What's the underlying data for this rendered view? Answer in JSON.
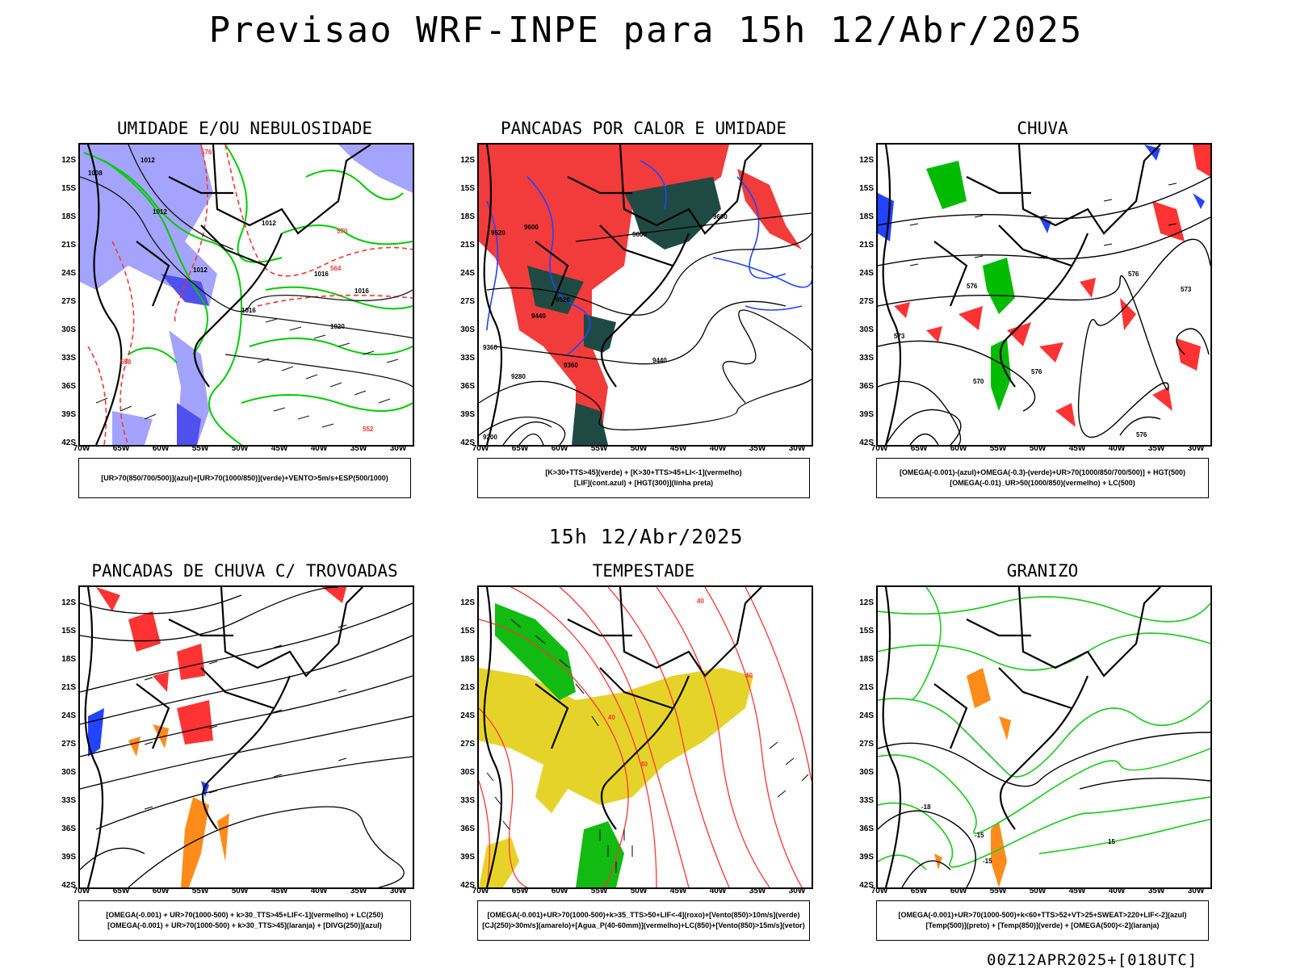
{
  "header": {
    "title": "Previsao WRF-INPE  para 15h 12/Abr/2025"
  },
  "middle_title": "15h 12/Abr/2025",
  "footer_stamp": "00Z12APR2025+[018UTC]",
  "axes": {
    "lat_labels": [
      "12S",
      "15S",
      "18S",
      "21S",
      "24S",
      "27S",
      "30S",
      "33S",
      "36S",
      "39S",
      "42S"
    ],
    "lon_labels": [
      "70W",
      "65W",
      "60W",
      "55W",
      "50W",
      "45W",
      "40W",
      "35W",
      "30W"
    ]
  },
  "colors": {
    "humidity_blue": "#8c8cff",
    "humidity_green": "#00cc00",
    "convective_red": "#ff3333",
    "dark_teal": "#1f4a44",
    "lifted_blue": "#2244ff",
    "tempest_yellow": "#e6d32a",
    "orange": "#ff8c1a",
    "contour_black": "#000000"
  },
  "panels": [
    {
      "id": "umidade",
      "title": "UMIDADE E/OU NEBULOSIDADE",
      "legend": [
        "[UR>70(850/700/500)](azul)+[UR>70(1000/850)](verde)+VENTO>5m/s+ESP(500/1000)"
      ],
      "contour_labels": [
        "1008",
        "1012",
        "1012",
        "1012",
        "1012",
        "1016",
        "1016",
        "1016",
        "1020",
        "576",
        "570",
        "564",
        "558",
        "552"
      ]
    },
    {
      "id": "pancadas-calor",
      "title": "PANCADAS POR CALOR E UMIDADE",
      "legend": [
        "[K>30+TTS>45](verde)  +  [K>30+TTS>45+LI<-1](vermelho)",
        "[LIF](cont.azul)  +  [HGT(300)](linha preta)"
      ],
      "contour_labels": [
        "9600",
        "9600",
        "9520",
        "9520",
        "9600",
        "9440",
        "9360",
        "9360",
        "9280",
        "9200",
        "9440"
      ]
    },
    {
      "id": "chuva",
      "title": "CHUVA",
      "legend": [
        "[OMEGA(-0.001)-(azul)+OMEGA(-0.3)-(verde)+UR>70(1000/850/700/500)]  +  HGT(500)",
        "[OMEGA(-0.01)_UR>50(1000/850)(vermelho)  +  LC(500)"
      ],
      "contour_labels": [
        "576",
        "573",
        "576",
        "573",
        "570",
        "576",
        "576"
      ]
    },
    {
      "id": "trovoadas",
      "title": "PANCADAS DE CHUVA C/ TROVOADAS",
      "legend": [
        "[OMEGA(-0.001)  +  UR>70(1000-500)  +  k>30_TTS>45+LIF<-1](vermelho)  +  LC(250)",
        "[OMEGA(-0.001)  +  UR>70(1000-500)  +  k>30_TTS>45](laranja)  +  [DIVG(250)](azul)"
      ],
      "contour_labels": []
    },
    {
      "id": "tempestade",
      "title": "TEMPESTADE",
      "legend": [
        "[OMEGA(-0.001)+UR>70(1000-500)+k>35_TTS>50+LIF<-4](roxo)+[Vento(850)>10m/s](verde)",
        "[CJ(250)>30m/s](amarelo)+[Agua_P(40-60mm)](vermelho)+LC(850)+[Vento(850)>15m/s](vetor)"
      ],
      "contour_labels": [
        "40",
        "40",
        "40",
        "40"
      ]
    },
    {
      "id": "granizo",
      "title": "GRANIZO",
      "legend": [
        "[OMEGA(-0.001)+UR>70(1000-500)+k<60+TTS>52+VT>25+SWEAT>220+LIF<-2](azul)",
        "[Temp(500)](preto)  +  [Temp(850)](verde)  +  [OMEGA(500)<-2](laranja)"
      ],
      "contour_labels": [
        "-18",
        "-15",
        "-15",
        "15"
      ]
    }
  ]
}
